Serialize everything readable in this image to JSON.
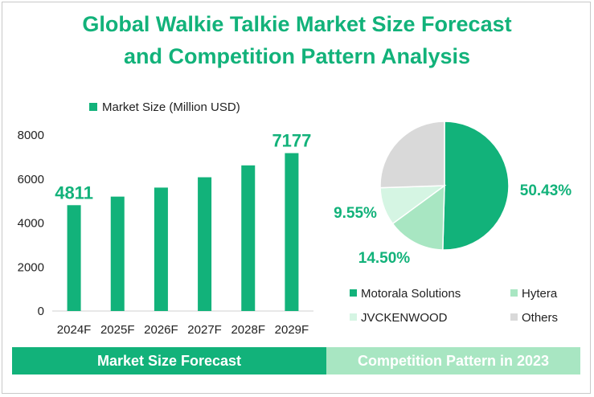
{
  "title": {
    "line1": "Global Walkie Talkie Market Size Forecast",
    "line2": "and Competition Pattern Analysis"
  },
  "colors": {
    "primary": "#12b27a",
    "light_green": "#a8e6c2",
    "pale_green": "#d5f5e3",
    "gray": "#d9d9d9",
    "footer_right_bg": "#a8e6c2"
  },
  "chart_data": [
    {
      "type": "bar",
      "title": "",
      "legend": "Market Size (Million USD)",
      "categories": [
        "2024F",
        "2025F",
        "2026F",
        "2027F",
        "2028F",
        "2029F"
      ],
      "values": [
        4811,
        5200,
        5610,
        6080,
        6620,
        7177
      ],
      "data_labels": [
        "4811",
        "",
        "",
        "",
        "",
        "7177"
      ],
      "ylim": [
        0,
        8000
      ],
      "yticks": [
        0,
        2000,
        4000,
        6000,
        8000
      ],
      "ytick_labels": [
        "0",
        "2000",
        "4000",
        "6000",
        "8000"
      ],
      "xlabel": "",
      "ylabel": "",
      "grid": false,
      "legend_position": "top"
    },
    {
      "type": "pie",
      "title": "Competition Pattern in 2023",
      "slices": [
        {
          "name": "Motorala Solutions",
          "value": 50.43,
          "label": "50.43%",
          "color": "#12b27a"
        },
        {
          "name": "Hytera",
          "value": 14.5,
          "label": "14.50%",
          "color": "#a8e6c2"
        },
        {
          "name": "JVCKENWOOD",
          "value": 9.55,
          "label": "9.55%",
          "color": "#d5f5e3"
        },
        {
          "name": "Others",
          "value": 25.52,
          "label": "",
          "color": "#d9d9d9"
        }
      ],
      "legend_position": "bottom"
    }
  ],
  "footer": {
    "left_label": "Market Size Forecast",
    "right_label": "Competition Pattern in 2023"
  }
}
